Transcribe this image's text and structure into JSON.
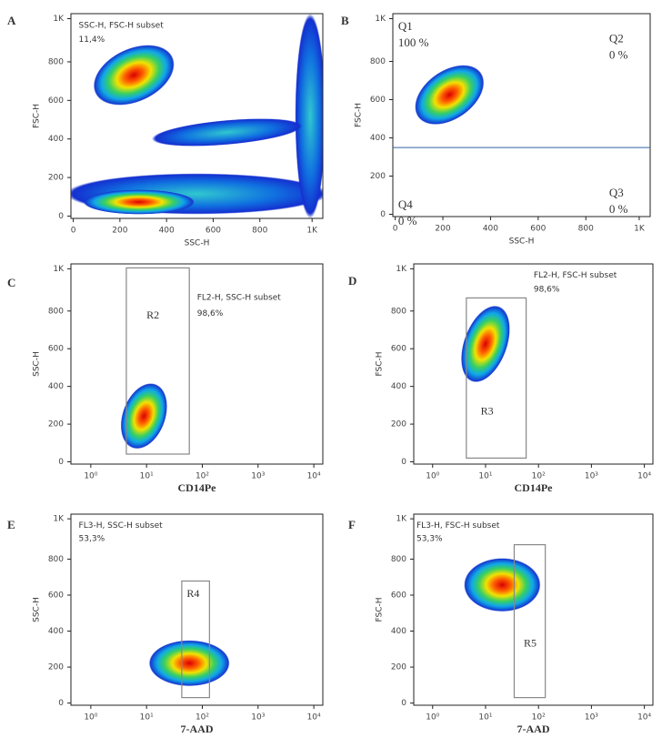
{
  "panels": [
    {
      "letter": "A",
      "xlabel": "SSC-H",
      "ylabel": "FSC-H",
      "xscale": "linear",
      "xlim": [
        -10,
        1070
      ],
      "ylim": [
        -12,
        1050
      ],
      "xticks": [
        0,
        200,
        400,
        600,
        800,
        {
          "value": 1024,
          "label": "1K"
        }
      ],
      "yticks": [
        0,
        200,
        400,
        600,
        800,
        {
          "value": 1024,
          "label": "1K"
        }
      ],
      "annotations": [
        "SSC-H, FSC-H subset",
        "11,4%"
      ]
    },
    {
      "letter": "B",
      "xlabel": "SSC-H",
      "ylabel": "FSC-H",
      "xscale": "linear",
      "xlim": [
        -10,
        1070
      ],
      "ylim": [
        -12,
        1050
      ],
      "xticks": [
        0,
        200,
        400,
        600,
        800,
        {
          "value": 1024,
          "label": "1K"
        }
      ],
      "yticks": [
        0,
        200,
        400,
        600,
        800,
        {
          "value": 1024,
          "label": "1K"
        }
      ],
      "quadrants": [
        {
          "name": "Q1",
          "value": "100 %"
        },
        {
          "name": "Q2",
          "value": "0 %"
        },
        {
          "name": "Q3",
          "value": "0 %"
        },
        {
          "name": "Q4",
          "value": "0 %"
        }
      ]
    },
    {
      "letter": "C",
      "xlabel": "CD14Pe",
      "ylabel": "SSC-H",
      "xscale": "log",
      "xlim": [
        0.44,
        14500
      ],
      "ylim": [
        -12,
        1050
      ],
      "xticks": [
        {
          "value": 1,
          "label": "10⁰"
        },
        {
          "value": 10,
          "label": "10¹"
        },
        {
          "value": 100,
          "label": "10²"
        },
        {
          "value": 1000,
          "label": "10³"
        },
        {
          "value": 10000,
          "label": "10⁴"
        }
      ],
      "yticks": [
        0,
        200,
        400,
        600,
        800,
        {
          "value": 1024,
          "label": "1K"
        }
      ],
      "annotations": [
        "FL2-H, SSC-H subset",
        "98,6%"
      ],
      "gate": "R2"
    },
    {
      "letter": "D",
      "xlabel": "CD14Pe",
      "ylabel": "FSC-H",
      "xscale": "log",
      "xlim": [
        0.44,
        14500
      ],
      "ylim": [
        -12,
        1050
      ],
      "xticks": [
        {
          "value": 1,
          "label": "10⁰"
        },
        {
          "value": 10,
          "label": "10¹"
        },
        {
          "value": 100,
          "label": "10²"
        },
        {
          "value": 1000,
          "label": "10³"
        },
        {
          "value": 10000,
          "label": "10⁴"
        }
      ],
      "yticks": [
        0,
        200,
        400,
        600,
        800,
        {
          "value": 1024,
          "label": "1K"
        }
      ],
      "annotations": [
        "FL2-H, FSC-H subset",
        "98,6%"
      ],
      "gate": "R3"
    },
    {
      "letter": "E",
      "xlabel": "7-AAD",
      "ylabel": "SSC-H",
      "xscale": "log",
      "xlim": [
        0.44,
        14500
      ],
      "ylim": [
        -12,
        1050
      ],
      "xticks": [
        {
          "value": 1,
          "label": "10⁰"
        },
        {
          "value": 10,
          "label": "10¹"
        },
        {
          "value": 100,
          "label": "10²"
        },
        {
          "value": 1000,
          "label": "10³"
        },
        {
          "value": 10000,
          "label": "10⁴"
        }
      ],
      "yticks": [
        0,
        200,
        400,
        600,
        800,
        {
          "value": 1024,
          "label": "1K"
        }
      ],
      "annotations": [
        "FL3-H, SSC-H subset",
        "53,3%"
      ],
      "gate": "R4"
    },
    {
      "letter": "F",
      "xlabel": "7-AAD",
      "ylabel": "FSC-H",
      "xscale": "log",
      "xlim": [
        0.44,
        14500
      ],
      "ylim": [
        -12,
        1050
      ],
      "xticks": [
        {
          "value": 1,
          "label": "10⁰"
        },
        {
          "value": 10,
          "label": "10¹"
        },
        {
          "value": 100,
          "label": "10²"
        },
        {
          "value": 1000,
          "label": "10³"
        },
        {
          "value": 10000,
          "label": "10⁴"
        }
      ],
      "yticks": [
        0,
        200,
        400,
        600,
        800,
        {
          "value": 1024,
          "label": "1K"
        }
      ],
      "annotations": [
        "FL3-H, FSC-H subset",
        "53,3%"
      ],
      "gate": "R5"
    }
  ]
}
